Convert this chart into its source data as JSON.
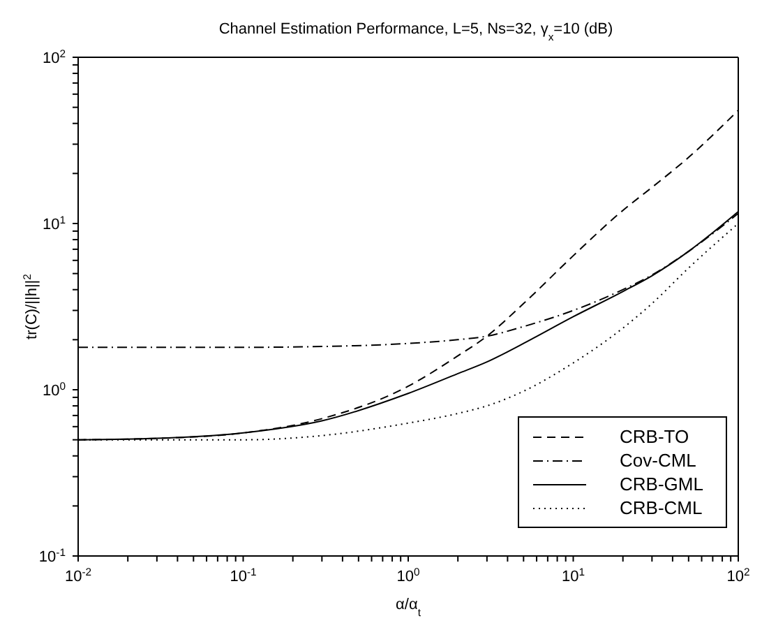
{
  "chart_data": {
    "type": "line",
    "title": "Channel Estimation Performance, L=5, Ns=32,    γ$_{x}$=10 (dB)",
    "xlabel": "α/α$_{t}$",
    "ylabel": "tr(C)/||h||$^{2}$",
    "log": "xy",
    "marker": "none",
    "legend": "bottom right",
    "xlim": [
      0.01,
      100
    ],
    "ylim": [
      0.1,
      100
    ],
    "xticks": [
      {
        "value": 0.01,
        "label": "10$^{-2}$"
      },
      {
        "value": 0.02,
        "label": null
      },
      {
        "value": 0.03,
        "label": null
      },
      {
        "value": 0.04,
        "label": null
      },
      {
        "value": 0.05,
        "label": null
      },
      {
        "value": 0.06,
        "label": null
      },
      {
        "value": 0.07,
        "label": null
      },
      {
        "value": 0.08,
        "label": null
      },
      {
        "value": 0.09,
        "label": null
      },
      {
        "value": 0.1,
        "label": "10$^{-1}$"
      },
      {
        "value": 0.2,
        "label": null
      },
      {
        "value": 0.3,
        "label": null
      },
      {
        "value": 0.4,
        "label": null
      },
      {
        "value": 0.5,
        "label": null
      },
      {
        "value": 0.6,
        "label": null
      },
      {
        "value": 0.7,
        "label": null
      },
      {
        "value": 0.8,
        "label": null
      },
      {
        "value": 0.9,
        "label": null
      },
      {
        "value": 1,
        "label": "10$^{0}$"
      },
      {
        "value": 2,
        "label": null
      },
      {
        "value": 3,
        "label": null
      },
      {
        "value": 4,
        "label": null
      },
      {
        "value": 5,
        "label": null
      },
      {
        "value": 6,
        "label": null
      },
      {
        "value": 7,
        "label": null
      },
      {
        "value": 8,
        "label": null
      },
      {
        "value": 9,
        "label": null
      },
      {
        "value": 10,
        "label": "10$^{1}$"
      },
      {
        "value": 20,
        "label": null
      },
      {
        "value": 30,
        "label": null
      },
      {
        "value": 40,
        "label": null
      },
      {
        "value": 50,
        "label": null
      },
      {
        "value": 60,
        "label": null
      },
      {
        "value": 70,
        "label": null
      },
      {
        "value": 80,
        "label": null
      },
      {
        "value": 90,
        "label": null
      },
      {
        "value": 100,
        "label": "10$^{2}$"
      }
    ],
    "yticks": [
      {
        "value": 0.1,
        "label": "10$^{-1}$"
      },
      {
        "value": 0.2,
        "label": null
      },
      {
        "value": 0.3,
        "label": null
      },
      {
        "value": 0.4,
        "label": null
      },
      {
        "value": 0.5,
        "label": null
      },
      {
        "value": 0.6,
        "label": null
      },
      {
        "value": 0.7,
        "label": null
      },
      {
        "value": 0.8,
        "label": null
      },
      {
        "value": 0.9,
        "label": null
      },
      {
        "value": 1,
        "label": "10$^{0}$"
      },
      {
        "value": 2,
        "label": null
      },
      {
        "value": 3,
        "label": null
      },
      {
        "value": 4,
        "label": null
      },
      {
        "value": 5,
        "label": null
      },
      {
        "value": 6,
        "label": null
      },
      {
        "value": 7,
        "label": null
      },
      {
        "value": 8,
        "label": null
      },
      {
        "value": 9,
        "label": null
      },
      {
        "value": 10,
        "label": "10$^{1}$"
      },
      {
        "value": 20,
        "label": null
      },
      {
        "value": 30,
        "label": null
      },
      {
        "value": 40,
        "label": null
      },
      {
        "value": 50,
        "label": null
      },
      {
        "value": 60,
        "label": null
      },
      {
        "value": 70,
        "label": null
      },
      {
        "value": 80,
        "label": null
      },
      {
        "value": 90,
        "label": null
      },
      {
        "value": 100,
        "label": "10$^{2}$"
      }
    ],
    "series": [
      {
        "name": "CRB-TO",
        "color": "#000000",
        "line_style": "dashed",
        "x": [
          0.01,
          0.03,
          0.1,
          0.3,
          1,
          2,
          3,
          5,
          10,
          20,
          30,
          50,
          100
        ],
        "values": [
          0.5,
          0.51,
          0.55,
          0.67,
          1.05,
          1.6,
          2.1,
          3.3,
          6.4,
          12,
          16.5,
          25,
          48
        ]
      },
      {
        "name": "Cov-CML",
        "color": "#000000",
        "line_style": "dashdot",
        "x": [
          0.01,
          0.03,
          0.1,
          0.3,
          1,
          2,
          3,
          5,
          10,
          20,
          30,
          50,
          100
        ],
        "values": [
          1.8,
          1.8,
          1.8,
          1.82,
          1.9,
          2.0,
          2.1,
          2.4,
          3.0,
          4.0,
          4.9,
          6.8,
          11.5
        ]
      },
      {
        "name": "CRB-GML",
        "color": "#000000",
        "line_style": "solid",
        "x": [
          0.01,
          0.03,
          0.1,
          0.3,
          1,
          2,
          3,
          5,
          10,
          20,
          30,
          50,
          100
        ],
        "values": [
          0.5,
          0.51,
          0.55,
          0.65,
          0.95,
          1.25,
          1.47,
          1.9,
          2.75,
          3.9,
          4.85,
          6.8,
          11.8
        ]
      },
      {
        "name": "CRB-CML",
        "color": "#000000",
        "line_style": "dotted",
        "x": [
          0.01,
          0.03,
          0.1,
          0.3,
          1,
          2,
          3,
          5,
          10,
          20,
          30,
          50,
          100
        ],
        "values": [
          0.5,
          0.5,
          0.5,
          0.53,
          0.63,
          0.72,
          0.8,
          0.98,
          1.45,
          2.35,
          3.3,
          5.4,
          10
        ]
      }
    ]
  }
}
